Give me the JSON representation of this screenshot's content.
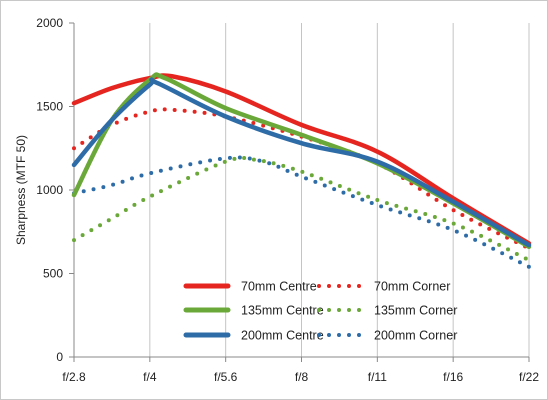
{
  "chart_data": {
    "type": "line",
    "title": "",
    "xlabel": "",
    "ylabel": "Sharpness (MTF 50)",
    "x_categories": [
      "f/2.8",
      "f/4",
      "f/5.6",
      "f/8",
      "f/11",
      "f/16",
      "f/22"
    ],
    "y_ticks": [
      "0",
      "500",
      "1000",
      "1500",
      "2000"
    ],
    "ylim": [
      0,
      2000
    ],
    "grid": "vertical",
    "legend_position": "bottom-center",
    "series": [
      {
        "name": "70mm Centre",
        "color": "#e5251f",
        "dash": "solid",
        "points": [
          [
            0,
            1520
          ],
          [
            0.5,
            1610
          ],
          [
            1,
            1670
          ],
          [
            1.3,
            1680
          ],
          [
            2,
            1590
          ],
          [
            3,
            1390
          ],
          [
            4,
            1230
          ],
          [
            5,
            950
          ],
          [
            6,
            680
          ]
        ]
      },
      {
        "name": "70mm Corner",
        "color": "#e5251f",
        "dash": "dotted",
        "points": [
          [
            0,
            1250
          ],
          [
            0.5,
            1390
          ],
          [
            1,
            1470
          ],
          [
            1.3,
            1480
          ],
          [
            2,
            1440
          ],
          [
            3,
            1320
          ],
          [
            4,
            1160
          ],
          [
            5,
            880
          ],
          [
            6,
            650
          ]
        ]
      },
      {
        "name": "135mm Centre",
        "color": "#6aa839",
        "dash": "solid",
        "points": [
          [
            0,
            970
          ],
          [
            0.5,
            1420
          ],
          [
            1,
            1660
          ],
          [
            1.2,
            1670
          ],
          [
            2,
            1490
          ],
          [
            3,
            1330
          ],
          [
            4,
            1160
          ],
          [
            5,
            920
          ],
          [
            6,
            660
          ]
        ]
      },
      {
        "name": "135mm Corner",
        "color": "#6aa839",
        "dash": "dotted",
        "points": [
          [
            0,
            700
          ],
          [
            0.5,
            830
          ],
          [
            1,
            960
          ],
          [
            2,
            1170
          ],
          [
            2.4,
            1180
          ],
          [
            3,
            1110
          ],
          [
            4,
            940
          ],
          [
            5,
            800
          ],
          [
            6,
            580
          ]
        ]
      },
      {
        "name": "200mm Centre",
        "color": "#2e6ca8",
        "dash": "solid",
        "points": [
          [
            0,
            1150
          ],
          [
            0.5,
            1420
          ],
          [
            1,
            1630
          ],
          [
            1.1,
            1640
          ],
          [
            2,
            1440
          ],
          [
            3,
            1280
          ],
          [
            4,
            1170
          ],
          [
            5,
            930
          ],
          [
            6,
            670
          ]
        ]
      },
      {
        "name": "200mm Corner",
        "color": "#2e6ca8",
        "dash": "dotted",
        "points": [
          [
            0,
            980
          ],
          [
            0.5,
            1030
          ],
          [
            1,
            1100
          ],
          [
            2,
            1190
          ],
          [
            2.5,
            1170
          ],
          [
            3,
            1080
          ],
          [
            4,
            910
          ],
          [
            5,
            760
          ],
          [
            6,
            540
          ]
        ]
      }
    ]
  }
}
